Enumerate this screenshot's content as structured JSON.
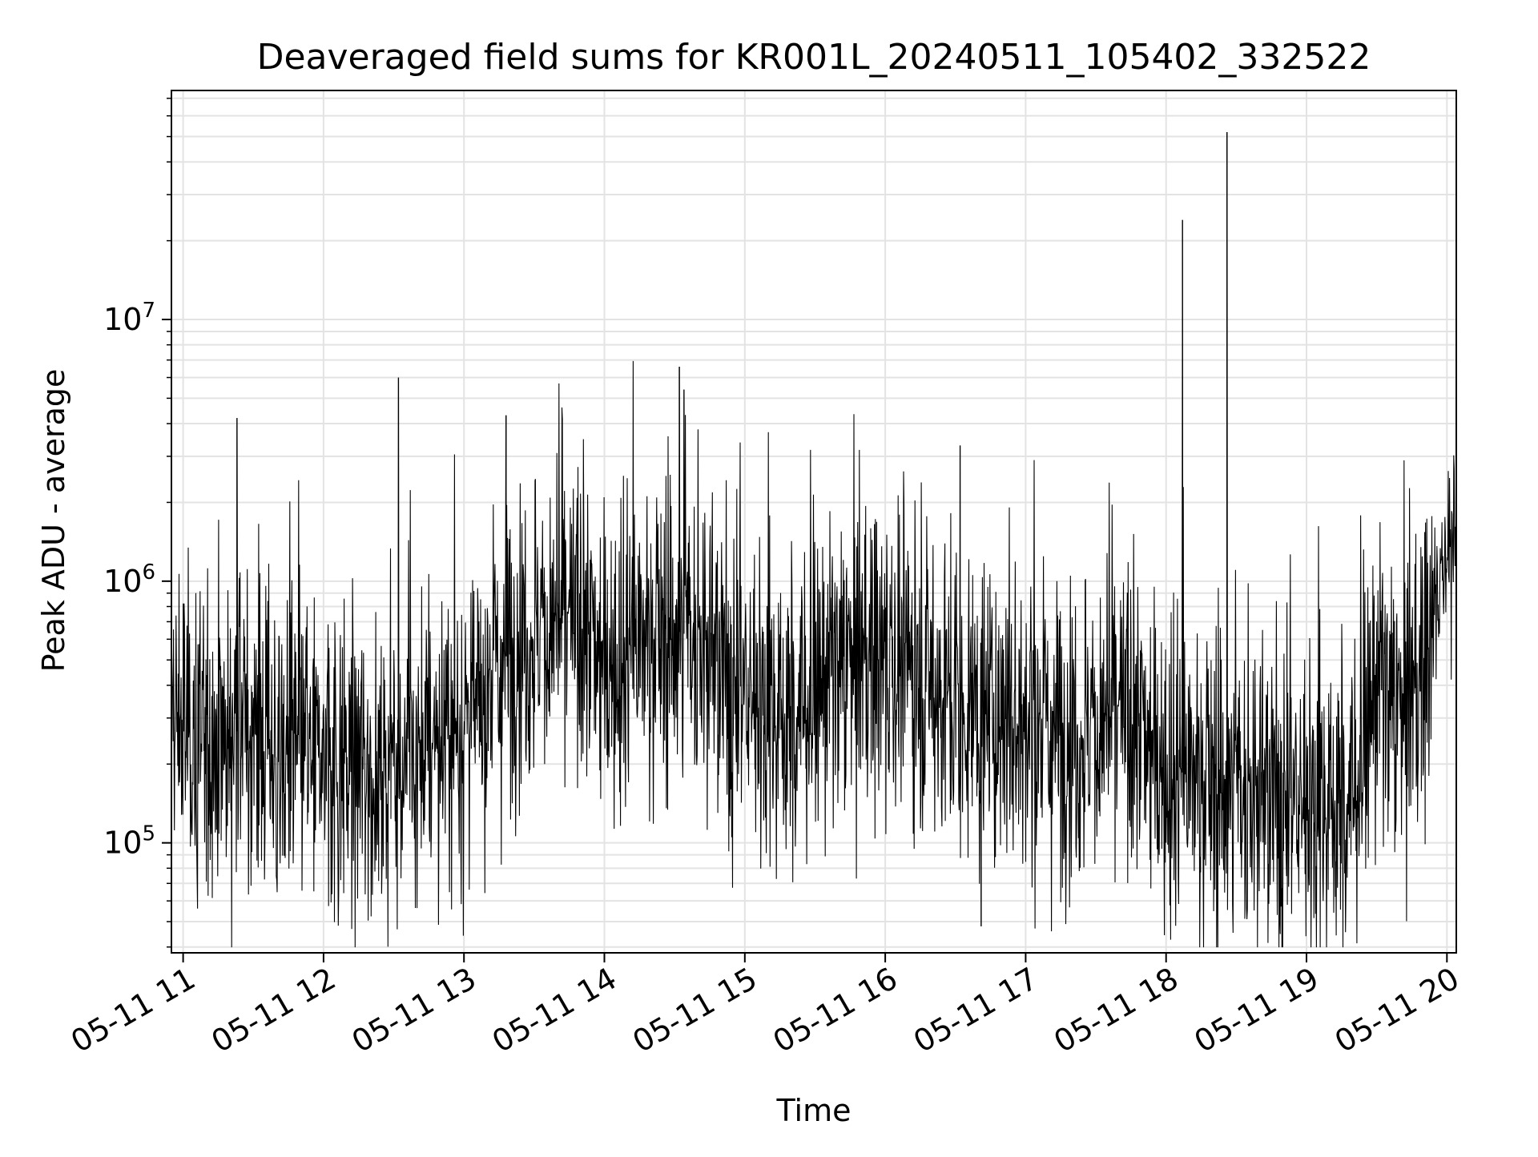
{
  "chart_data": {
    "type": "line",
    "title": "Deaveraged field sums for KR001L_20240511_105402_332522",
    "xlabel": "Time",
    "ylabel": "Peak ADU - average",
    "yscale": "log",
    "ylim": [
      38000,
      75000000
    ],
    "xlim": [
      "2024-05-11 10:55",
      "2024-05-11 20:04"
    ],
    "grid": true,
    "x_ticks": [
      {
        "value": "2024-05-11 11:00",
        "label": "05-11 11"
      },
      {
        "value": "2024-05-11 12:00",
        "label": "05-11 12"
      },
      {
        "value": "2024-05-11 13:00",
        "label": "05-11 13"
      },
      {
        "value": "2024-05-11 14:00",
        "label": "05-11 14"
      },
      {
        "value": "2024-05-11 15:00",
        "label": "05-11 15"
      },
      {
        "value": "2024-05-11 16:00",
        "label": "05-11 16"
      },
      {
        "value": "2024-05-11 17:00",
        "label": "05-11 17"
      },
      {
        "value": "2024-05-11 18:00",
        "label": "05-11 18"
      },
      {
        "value": "2024-05-11 19:00",
        "label": "05-11 19"
      },
      {
        "value": "2024-05-11 20:00",
        "label": "05-11 20"
      }
    ],
    "y_ticks": [
      {
        "value": 100000,
        "base": "10",
        "exp": "5"
      },
      {
        "value": 1000000,
        "base": "10",
        "exp": "6"
      },
      {
        "value": 10000000,
        "base": "10",
        "exp": "7"
      }
    ],
    "series": [
      {
        "color": "#000000",
        "x": [
          "2024-05-11 10:55",
          "2024-05-11 11:00",
          "2024-05-11 11:10",
          "2024-05-11 11:20",
          "2024-05-11 11:30",
          "2024-05-11 11:40",
          "2024-05-11 11:50",
          "2024-05-11 12:00",
          "2024-05-11 12:10",
          "2024-05-11 12:20",
          "2024-05-11 12:30",
          "2024-05-11 12:40",
          "2024-05-11 12:50",
          "2024-05-11 13:00",
          "2024-05-11 13:10",
          "2024-05-11 13:20",
          "2024-05-11 13:30",
          "2024-05-11 13:40",
          "2024-05-11 13:50",
          "2024-05-11 14:00",
          "2024-05-11 14:10",
          "2024-05-11 14:20",
          "2024-05-11 14:30",
          "2024-05-11 14:40",
          "2024-05-11 14:50",
          "2024-05-11 15:00",
          "2024-05-11 15:10",
          "2024-05-11 15:20",
          "2024-05-11 15:30",
          "2024-05-11 15:40",
          "2024-05-11 15:50",
          "2024-05-11 16:00",
          "2024-05-11 16:10",
          "2024-05-11 16:20",
          "2024-05-11 16:30",
          "2024-05-11 16:40",
          "2024-05-11 16:50",
          "2024-05-11 17:00",
          "2024-05-11 17:10",
          "2024-05-11 17:20",
          "2024-05-11 17:30",
          "2024-05-11 17:40",
          "2024-05-11 17:50",
          "2024-05-11 18:00",
          "2024-05-11 18:10",
          "2024-05-11 18:20",
          "2024-05-11 18:30",
          "2024-05-11 18:40",
          "2024-05-11 18:50",
          "2024-05-11 19:00",
          "2024-05-11 19:10",
          "2024-05-11 19:20",
          "2024-05-11 19:30",
          "2024-05-11 19:40",
          "2024-05-11 19:50",
          "2024-05-11 20:00",
          "2024-05-11 20:04"
        ],
        "y": [
          300000,
          280000,
          250000,
          270000,
          260000,
          230000,
          220000,
          210000,
          200000,
          190000,
          200000,
          220000,
          240000,
          280000,
          400000,
          550000,
          650000,
          700000,
          650000,
          500000,
          550000,
          600000,
          650000,
          600000,
          450000,
          380000,
          320000,
          300000,
          380000,
          450000,
          500000,
          520000,
          480000,
          400000,
          330000,
          300000,
          300000,
          290000,
          270000,
          260000,
          280000,
          300000,
          260000,
          200000,
          180000,
          170000,
          160000,
          150000,
          150000,
          140000,
          140000,
          150000,
          400000,
          300000,
          450000,
          1400000,
          1500000
        ]
      }
    ],
    "spikes": [
      {
        "x": "2024-05-11 11:23",
        "y": 4200000
      },
      {
        "x": "2024-05-11 12:32",
        "y": 6000000
      },
      {
        "x": "2024-05-11 13:18",
        "y": 4300000
      },
      {
        "x": "2024-05-11 13:42",
        "y": 4200000
      },
      {
        "x": "2024-05-11 14:32",
        "y": 6600000
      },
      {
        "x": "2024-05-11 14:34",
        "y": 5400000
      },
      {
        "x": "2024-05-11 16:32",
        "y": 3300000
      },
      {
        "x": "2024-05-11 18:07",
        "y": 24000000
      },
      {
        "x": "2024-05-11 18:26",
        "y": 52000000
      },
      {
        "x": "2024-05-11 16:41",
        "y": 48000
      }
    ]
  }
}
